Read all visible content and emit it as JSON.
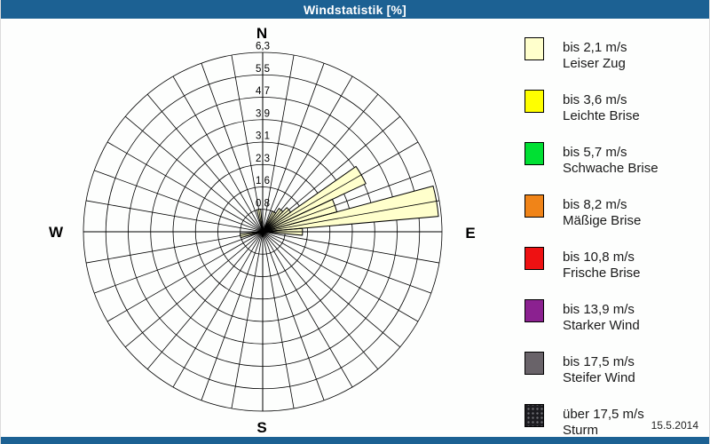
{
  "window": {
    "title": "Windstatistik [%]"
  },
  "footer": {
    "date": "15.5.2014"
  },
  "compass": {
    "north": "N",
    "east": "E",
    "south": "S",
    "west": "W"
  },
  "legend": {
    "items": [
      {
        "color": "#FFFFCC",
        "line1": "bis 2,1 m/s",
        "line2": "Leiser Zug"
      },
      {
        "color": "#FFFF00",
        "line1": "bis 3,6 m/s",
        "line2": "Leichte Brise"
      },
      {
        "color": "#00E033",
        "line1": "bis 5,7 m/s",
        "line2": "Schwache Brise"
      },
      {
        "color": "#F08418",
        "line1": "bis 8,2 m/s",
        "line2": "Mäßige Brise"
      },
      {
        "color": "#EE1112",
        "line1": "bis 10,8 m/s",
        "line2": "Frische Brise"
      },
      {
        "color": "#8B2190",
        "line1": "bis 13,9 m/s",
        "line2": "Starker Wind"
      },
      {
        "color": "#696369",
        "line1": "bis 17,5 m/s",
        "line2": "Steifer Wind"
      },
      {
        "color": "#1C1C20",
        "line1": "über 17,5 m/s",
        "line2": "Sturm"
      }
    ]
  },
  "chart_data": {
    "type": "windrose",
    "title": "Windstatistik [%]",
    "units": "%",
    "sector_width_deg": 10,
    "spoke_step_deg": 10,
    "rings": 8,
    "ring_labels": [
      "0,8",
      "1,6",
      "2,3",
      "3,1",
      "3,9",
      "4,7",
      "5,5",
      "6,3"
    ],
    "ring_values": [
      0.8,
      1.6,
      2.3,
      3.1,
      3.9,
      4.7,
      5.5,
      6.3
    ],
    "rmax": 6.3,
    "petal_color": "#FFFFCC",
    "petal_speed_class": "bis 2,1 m/s",
    "petals": [
      {
        "direction_deg": 30,
        "value_pct": 0.8
      },
      {
        "direction_deg": 40,
        "value_pct": 1.0
      },
      {
        "direction_deg": 50,
        "value_pct": 1.2
      },
      {
        "direction_deg": 60,
        "value_pct": 4.0
      },
      {
        "direction_deg": 70,
        "value_pct": 2.7
      },
      {
        "direction_deg": 80,
        "value_pct": 6.2
      },
      {
        "direction_deg": 90,
        "value_pct": 1.4
      },
      {
        "direction_deg": 260,
        "value_pct": 0.8
      },
      {
        "direction_deg": 350,
        "value_pct": 0.8
      }
    ]
  }
}
